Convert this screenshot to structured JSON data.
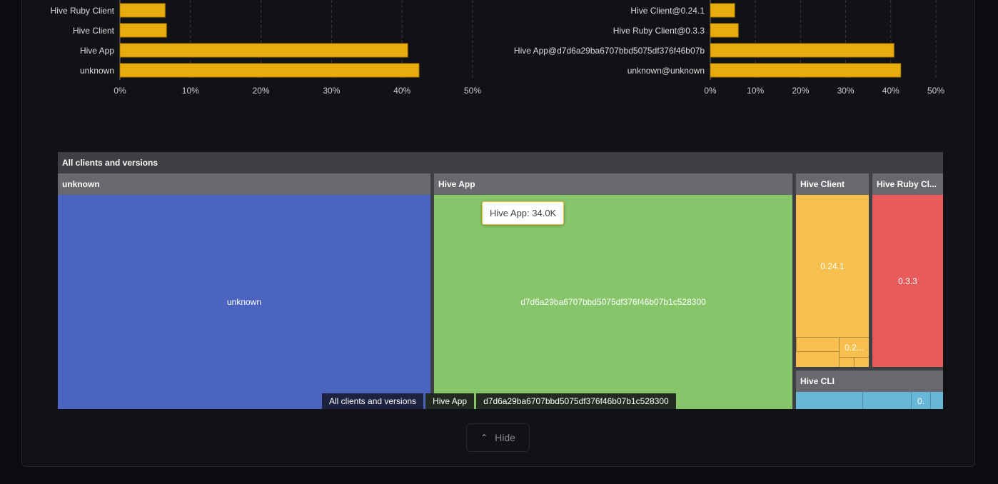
{
  "chart_data": [
    {
      "type": "bar",
      "orientation": "horizontal",
      "categories": [
        "Hive Ruby Client",
        "Hive Client",
        "Hive App",
        "unknown"
      ],
      "values": [
        6.4,
        6.6,
        40.8,
        42.4
      ],
      "xlim": [
        0,
        50
      ],
      "xticks": [
        "0%",
        "10%",
        "20%",
        "30%",
        "40%",
        "50%"
      ],
      "grid": true,
      "color": "#e8ac0f"
    },
    {
      "type": "bar",
      "orientation": "horizontal",
      "categories": [
        "Hive Client@0.24.1",
        "Hive Ruby Client@0.3.3",
        "Hive App@d7d6a29ba6707bbd5075df376f46b07b",
        "unknown@unknown"
      ],
      "values": [
        5.4,
        6.2,
        40.7,
        42.2
      ],
      "xlim": [
        0,
        50
      ],
      "xticks": [
        "0%",
        "10%",
        "20%",
        "30%",
        "40%",
        "50%"
      ],
      "grid": true,
      "color": "#e8ac0f"
    }
  ],
  "treemap": {
    "root": "All clients and versions",
    "groups": [
      {
        "name": "unknown",
        "color": "#4b64c0",
        "children": [
          "unknown"
        ]
      },
      {
        "name": "Hive App",
        "color": "#86c56a",
        "children": [
          "d7d6a29ba6707bbd5075df376f46b07b1c528300"
        ]
      },
      {
        "name": "Hive Client",
        "color": "#f7c04e",
        "children": [
          "0.24.1",
          "0.2..."
        ]
      },
      {
        "name": "Hive Ruby Cl...",
        "color": "#e95b5b",
        "children": [
          "0.3.3"
        ]
      },
      {
        "name": "Hive CLI",
        "color": "#67b8d8",
        "children": [
          "0."
        ]
      }
    ],
    "tooltip": "Hive App: 34.0K",
    "breadcrumb": [
      "All clients and versions",
      "Hive App",
      "d7d6a29ba6707bbd5075df376f46b07b1c528300"
    ]
  },
  "hide_button": {
    "label": "Hide",
    "icon": "chevron-up-icon"
  }
}
